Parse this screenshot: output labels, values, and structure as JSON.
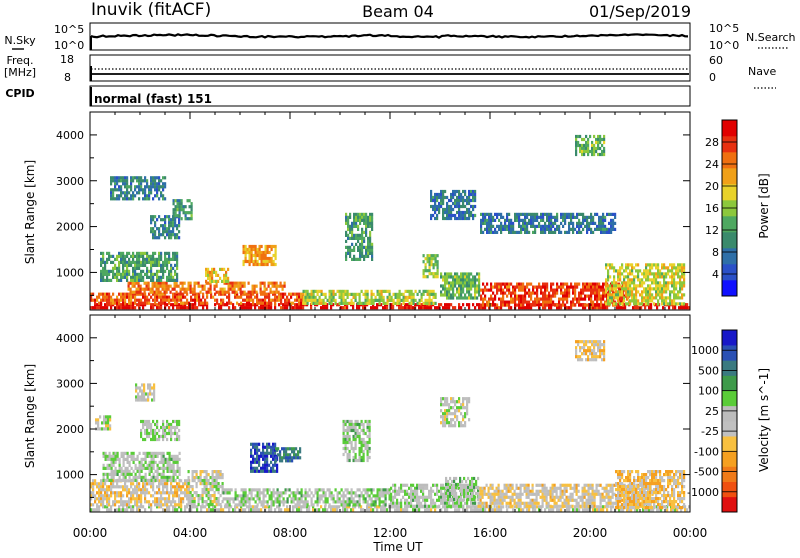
{
  "header": {
    "station": "Inuvik (fitACF)",
    "beam": "Beam 04",
    "date": "01/Sep/2019"
  },
  "strip_nsky": {
    "left_label": "N.Sky",
    "left_ticks": [
      "10^5",
      "10^0"
    ],
    "right_ticks": [
      "10^5",
      "10^0"
    ],
    "right_label": "N.Search"
  },
  "strip_freq": {
    "left_label_1": "Freq.",
    "left_label_2": "[MHz]",
    "left_ticks": [
      "18",
      "8"
    ],
    "right_ticks": [
      "60",
      "0"
    ],
    "right_label": "Nave"
  },
  "cpid": {
    "label": "CPID",
    "mode": "normal (fast) 151"
  },
  "x_axis": {
    "label": "Time UT",
    "ticks": [
      "00:00",
      "04:00",
      "08:00",
      "12:00",
      "16:00",
      "20:00",
      "00:00"
    ]
  },
  "chart_data": [
    {
      "type": "heatmap",
      "ylabel": "Slant Range [km]",
      "yticks": [
        "1000",
        "2000",
        "3000",
        "4000"
      ],
      "yrange": [
        180,
        4500
      ],
      "xrange_hours": [
        0,
        24
      ],
      "colorbar": {
        "label": "Power [dB]",
        "ticks": [
          "4",
          "8",
          "12",
          "16",
          "20",
          "24",
          "28"
        ],
        "range": [
          0,
          32
        ],
        "colors": [
          "#1010ff",
          "#2a50c8",
          "#2e6fa8",
          "#3a8a6c",
          "#4ea860",
          "#8cc83c",
          "#e8d22a",
          "#f0a018",
          "#f07010",
          "#e83010",
          "#e00000"
        ]
      },
      "regions": [
        {
          "t0": 0.0,
          "t1": 24.0,
          "r0": 200,
          "r1": 330,
          "level": 30
        },
        {
          "t0": 0.0,
          "t1": 8.5,
          "r0": 330,
          "r1": 560,
          "level": 26
        },
        {
          "t0": 1.5,
          "t1": 7.8,
          "r0": 560,
          "r1": 800,
          "level": 24
        },
        {
          "t0": 6.1,
          "t1": 7.4,
          "r0": 1150,
          "r1": 1600,
          "level": 22
        },
        {
          "t0": 4.6,
          "t1": 5.5,
          "r0": 800,
          "r1": 1100,
          "level": 20
        },
        {
          "t0": 8.5,
          "t1": 13.8,
          "r0": 330,
          "r1": 620,
          "level": 17
        },
        {
          "t0": 0.4,
          "t1": 3.5,
          "r0": 800,
          "r1": 1450,
          "level": 12
        },
        {
          "t0": 2.4,
          "t1": 3.6,
          "r0": 1750,
          "r1": 2250,
          "level": 9
        },
        {
          "t0": 3.3,
          "t1": 4.1,
          "r0": 2200,
          "r1": 2600,
          "level": 12
        },
        {
          "t0": 14.0,
          "t1": 15.6,
          "r0": 450,
          "r1": 1000,
          "level": 14
        },
        {
          "t0": 15.6,
          "t1": 21.6,
          "r0": 300,
          "r1": 780,
          "level": 27
        },
        {
          "t0": 20.6,
          "t1": 23.8,
          "r0": 300,
          "r1": 1200,
          "level": 18
        },
        {
          "t0": 0.8,
          "t1": 3.0,
          "r0": 2600,
          "r1": 3100,
          "level": 9
        },
        {
          "t0": 13.6,
          "t1": 15.4,
          "r0": 2200,
          "r1": 2800,
          "level": 8
        },
        {
          "t0": 15.6,
          "t1": 21.0,
          "r0": 1900,
          "r1": 2300,
          "level": 8
        },
        {
          "t0": 19.4,
          "t1": 20.6,
          "r0": 3600,
          "r1": 4000,
          "level": 14
        },
        {
          "t0": 10.2,
          "t1": 11.3,
          "r0": 1300,
          "r1": 2300,
          "level": 12
        },
        {
          "t0": 13.3,
          "t1": 13.9,
          "r0": 900,
          "r1": 1400,
          "level": 16
        }
      ]
    },
    {
      "type": "heatmap",
      "ylabel": "Slant Range [km]",
      "yticks": [
        "1000",
        "2000",
        "3000",
        "4000"
      ],
      "yrange": [
        180,
        4500
      ],
      "xrange_hours": [
        0,
        24
      ],
      "colorbar": {
        "label": "Velocity [m s^-1]",
        "ticks": [
          "1000",
          "500",
          "100",
          "25",
          "-25",
          "-100",
          "-500",
          "-1000"
        ],
        "range": [
          -1200,
          1200
        ],
        "colors": [
          "#e01010",
          "#f05010",
          "#f07a18",
          "#f5a020",
          "#f8c040",
          "#c0c0c0",
          "#bcbcbc",
          "#5acc38",
          "#3e9a4a",
          "#3a7a80",
          "#2a50b4",
          "#1818c8"
        ]
      },
      "regions": [
        {
          "t0": 0.0,
          "t1": 24.0,
          "r0": 200,
          "r1": 330,
          "level": 0
        },
        {
          "t0": 0.0,
          "t1": 4.0,
          "r0": 330,
          "r1": 900,
          "level": -200
        },
        {
          "t0": 3.9,
          "t1": 5.3,
          "r0": 330,
          "r1": 1100,
          "level": 0
        },
        {
          "t0": 5.3,
          "t1": 12.0,
          "r0": 330,
          "r1": 700,
          "level": 150
        },
        {
          "t0": 6.4,
          "t1": 7.5,
          "r0": 1100,
          "r1": 1700,
          "level": 900
        },
        {
          "t0": 7.4,
          "t1": 8.4,
          "r0": 1300,
          "r1": 1600,
          "level": 700
        },
        {
          "t0": 0.5,
          "t1": 3.6,
          "r0": 900,
          "r1": 1500,
          "level": 120
        },
        {
          "t0": 2.0,
          "t1": 3.6,
          "r0": 1750,
          "r1": 2200,
          "level": 80
        },
        {
          "t0": 0.2,
          "t1": 0.8,
          "r0": 2000,
          "r1": 2300,
          "level": 0
        },
        {
          "t0": 1.8,
          "t1": 2.6,
          "r0": 2650,
          "r1": 3000,
          "level": 0
        },
        {
          "t0": 12.0,
          "t1": 15.4,
          "r0": 330,
          "r1": 800,
          "level": 120
        },
        {
          "t0": 14.2,
          "t1": 15.5,
          "r0": 450,
          "r1": 950,
          "level": 200
        },
        {
          "t0": 15.5,
          "t1": 22.5,
          "r0": 300,
          "r1": 800,
          "level": -150
        },
        {
          "t0": 21.0,
          "t1": 23.8,
          "r0": 300,
          "r1": 1100,
          "level": -300
        },
        {
          "t0": 10.1,
          "t1": 11.2,
          "r0": 1300,
          "r1": 2200,
          "level": 150
        },
        {
          "t0": 19.4,
          "t1": 20.6,
          "r0": 3550,
          "r1": 3950,
          "level": -250
        },
        {
          "t0": 14.0,
          "t1": 15.2,
          "r0": 2100,
          "r1": 2700,
          "level": 30
        }
      ]
    }
  ]
}
